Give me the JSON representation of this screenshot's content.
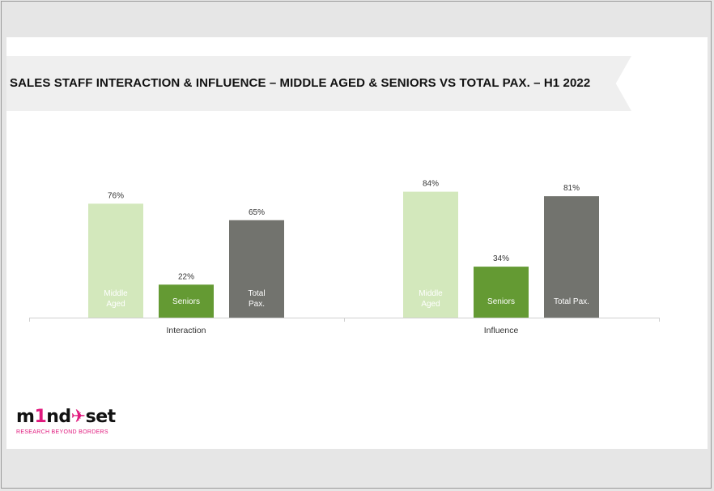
{
  "title": "SALES STAFF INTERACTION & INFLUENCE – MIDDLE AGED & SENIORS  VS TOTAL PAX. – H1 2022",
  "logo": {
    "word_a": "m",
    "word_b": "1",
    "word_c": "nd",
    "word_d": "set",
    "tagline": "RESEARCH BEYOND BORDERS"
  },
  "chart_data": {
    "type": "bar",
    "categories": [
      "Interaction",
      "Influence"
    ],
    "series": [
      {
        "name": "Middle Aged",
        "values": [
          76,
          84
        ],
        "color": "#d3e8bc",
        "label_color": "#ffffff"
      },
      {
        "name": "Seniors",
        "values": [
          22,
          34
        ],
        "color": "#649a33",
        "label_color": "#ffffff"
      },
      {
        "name": "Total Pax.",
        "values": [
          65,
          81
        ],
        "color": "#72736e",
        "label_color": "#ffffff"
      }
    ],
    "value_labels": {
      "Interaction": [
        "76%",
        "22%",
        "65%"
      ],
      "Influence": [
        "84%",
        "34%",
        "81%"
      ]
    },
    "in_bar_labels": {
      "Interaction": [
        [
          "Middle",
          "Aged"
        ],
        [
          "Seniors"
        ],
        [
          "Total",
          "Pax."
        ]
      ],
      "Influence": [
        [
          "Middle",
          "Aged"
        ],
        [
          "Seniors"
        ],
        [
          "Total Pax."
        ]
      ]
    },
    "unit": "%",
    "ylim": [
      0,
      100
    ],
    "grid": false,
    "legend": "none",
    "xlabel": "",
    "ylabel": ""
  }
}
